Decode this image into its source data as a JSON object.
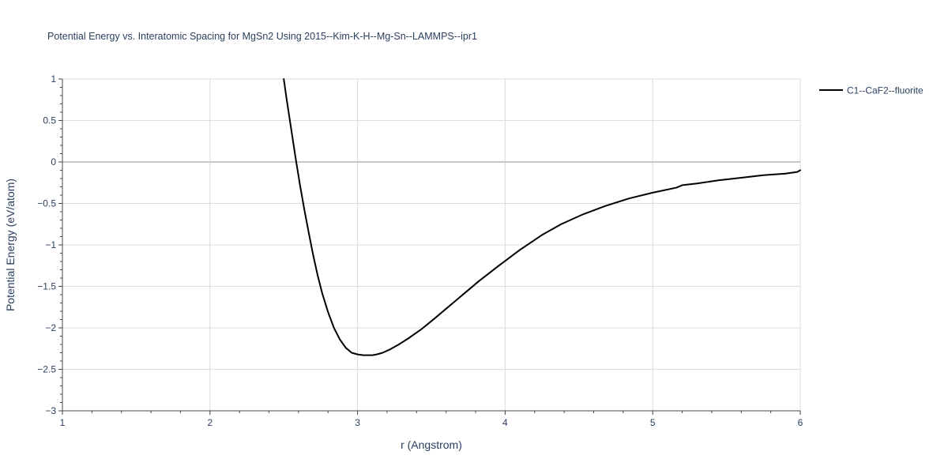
{
  "chart_data": {
    "type": "line",
    "title": "Potential Energy vs. Interatomic Spacing for MgSn2 Using 2015--Kim-K-H--Mg-Sn--LAMMPS--ipr1",
    "xlabel": "r (Angstrom)",
    "ylabel": "Potential Energy (eV/atom)",
    "xlim": [
      1,
      6
    ],
    "ylim": [
      -3,
      1
    ],
    "x_ticks": [
      1,
      2,
      3,
      4,
      5,
      6
    ],
    "x_tick_labels": [
      "1",
      "2",
      "3",
      "4",
      "5",
      "6"
    ],
    "y_ticks": [
      1,
      0.5,
      0,
      -0.5,
      -1,
      -1.5,
      -2,
      -2.5,
      -3
    ],
    "y_tick_labels": [
      "1",
      "0.5",
      "0",
      "−0.5",
      "−1",
      "−1.5",
      "−2",
      "−2.5",
      "−3"
    ],
    "grid": true,
    "legend_position": "top-right",
    "series": [
      {
        "name": "C1--CaF2--fluorite",
        "color": "#000000",
        "x": [
          2.5,
          2.52,
          2.55,
          2.58,
          2.61,
          2.64,
          2.67,
          2.7,
          2.73,
          2.76,
          2.8,
          2.84,
          2.88,
          2.92,
          2.96,
          3.0,
          3.04,
          3.07,
          3.1,
          3.13,
          3.17,
          3.22,
          3.28,
          3.35,
          3.43,
          3.52,
          3.62,
          3.72,
          3.82,
          3.95,
          4.1,
          4.25,
          4.38,
          4.53,
          4.68,
          4.84,
          5.0,
          5.16,
          5.2,
          5.3,
          5.45,
          5.6,
          5.75,
          5.9,
          5.98,
          6.0
        ],
        "y": [
          1.0,
          0.75,
          0.4,
          0.05,
          -0.28,
          -0.58,
          -0.86,
          -1.13,
          -1.37,
          -1.58,
          -1.81,
          -2.0,
          -2.14,
          -2.24,
          -2.3,
          -2.32,
          -2.33,
          -2.33,
          -2.33,
          -2.32,
          -2.3,
          -2.26,
          -2.2,
          -2.12,
          -2.02,
          -1.89,
          -1.74,
          -1.59,
          -1.44,
          -1.26,
          -1.06,
          -0.88,
          -0.75,
          -0.63,
          -0.53,
          -0.44,
          -0.37,
          -0.31,
          -0.28,
          -0.26,
          -0.22,
          -0.19,
          -0.16,
          -0.14,
          -0.12,
          -0.1
        ]
      }
    ]
  }
}
